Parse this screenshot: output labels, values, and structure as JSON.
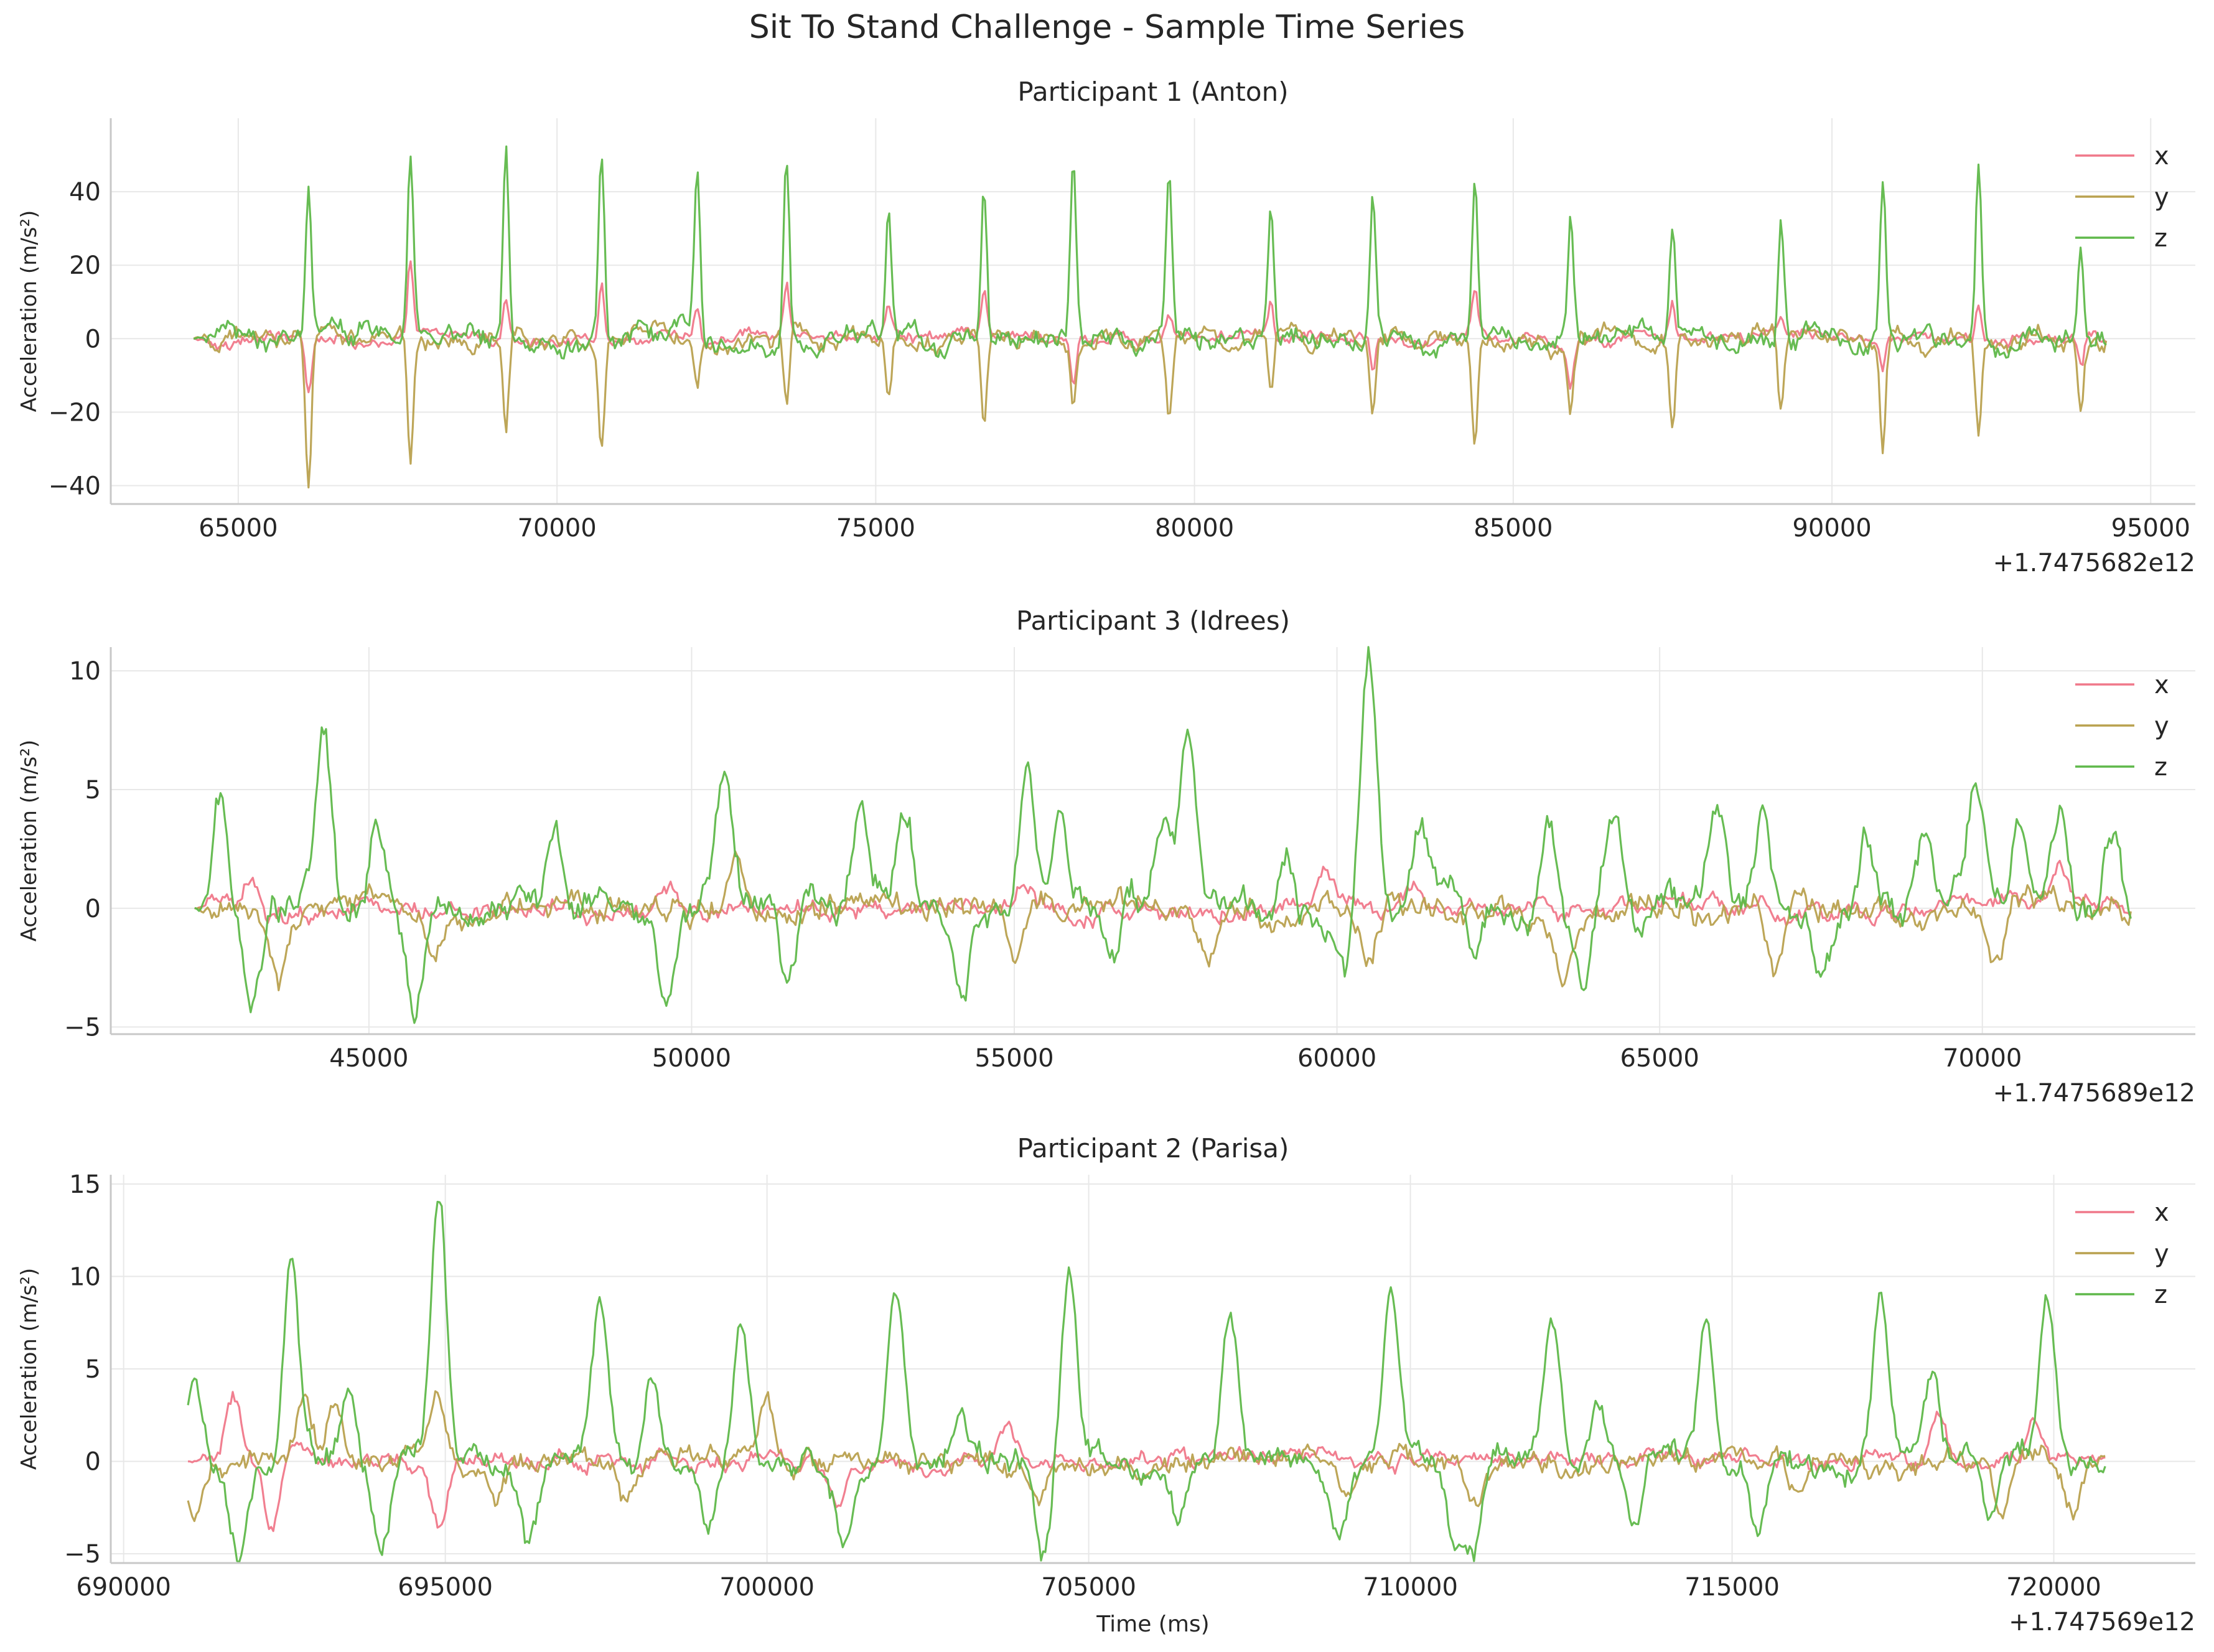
{
  "suptitle": "Sit To Stand Challenge - Sample Time Series",
  "colors": {
    "x": "#f0788a",
    "y": "#b9a14f",
    "z": "#5fb84a",
    "grid": "#e8e8e8",
    "axis": "#c8c8c8"
  },
  "chart_data": [
    {
      "type": "line",
      "title": "Participant 1 (Anton)",
      "xlabel": "",
      "ylabel": "Acceleration (m/s²)",
      "offset_label": "+1.7475682e12",
      "xlim": [
        63000,
        95700
      ],
      "ylim": [
        -45,
        60
      ],
      "xticks": [
        65000,
        70000,
        75000,
        80000,
        85000,
        90000,
        95000
      ],
      "yticks": [
        -40,
        -20,
        0,
        20,
        40
      ],
      "grid": true,
      "legend": "upper-right",
      "x_range": [
        64300,
        94300
      ],
      "series": [
        {
          "name": "x",
          "color": "#f0788a",
          "noise": 2.2,
          "spikes": [
            {
              "t": 66100,
              "v": -14
            },
            {
              "t": 67700,
              "v": 22
            },
            {
              "t": 69200,
              "v": 12
            },
            {
              "t": 70700,
              "v": 16
            },
            {
              "t": 72200,
              "v": 8
            },
            {
              "t": 73600,
              "v": 15
            },
            {
              "t": 75200,
              "v": 9
            },
            {
              "t": 76700,
              "v": 11
            },
            {
              "t": 78100,
              "v": -14
            },
            {
              "t": 79600,
              "v": 6
            },
            {
              "t": 81200,
              "v": 10
            },
            {
              "t": 82800,
              "v": -10
            },
            {
              "t": 84400,
              "v": 12
            },
            {
              "t": 85900,
              "v": -12
            },
            {
              "t": 87500,
              "v": 10
            },
            {
              "t": 89200,
              "v": 5
            },
            {
              "t": 90800,
              "v": -7
            },
            {
              "t": 92300,
              "v": 10
            },
            {
              "t": 93900,
              "v": -8
            }
          ]
        },
        {
          "name": "y",
          "color": "#b9a14f",
          "noise": 3.5,
          "spikes": [
            {
              "t": 66100,
              "v": -40
            },
            {
              "t": 67700,
              "v": -35
            },
            {
              "t": 69200,
              "v": -27
            },
            {
              "t": 70700,
              "v": -26
            },
            {
              "t": 72200,
              "v": -12
            },
            {
              "t": 73600,
              "v": -22
            },
            {
              "t": 75200,
              "v": -17
            },
            {
              "t": 76700,
              "v": -23
            },
            {
              "t": 78100,
              "v": -20
            },
            {
              "t": 79600,
              "v": -22
            },
            {
              "t": 81200,
              "v": -15
            },
            {
              "t": 82800,
              "v": -21
            },
            {
              "t": 84400,
              "v": -28
            },
            {
              "t": 85900,
              "v": -20
            },
            {
              "t": 87500,
              "v": -24
            },
            {
              "t": 89200,
              "v": -23
            },
            {
              "t": 90800,
              "v": -31
            },
            {
              "t": 92300,
              "v": -26
            },
            {
              "t": 93900,
              "v": -19
            }
          ]
        },
        {
          "name": "z",
          "color": "#5fb84a",
          "noise": 4.0,
          "spikes": [
            {
              "t": 66100,
              "v": 40
            },
            {
              "t": 67700,
              "v": 49
            },
            {
              "t": 69200,
              "v": 55
            },
            {
              "t": 70700,
              "v": 50
            },
            {
              "t": 72200,
              "v": 43
            },
            {
              "t": 73600,
              "v": 51
            },
            {
              "t": 75200,
              "v": 36
            },
            {
              "t": 76700,
              "v": 45
            },
            {
              "t": 78100,
              "v": 49
            },
            {
              "t": 79600,
              "v": 42
            },
            {
              "t": 81200,
              "v": 39
            },
            {
              "t": 82800,
              "v": 37
            },
            {
              "t": 84400,
              "v": 44
            },
            {
              "t": 85900,
              "v": 32
            },
            {
              "t": 87500,
              "v": 34
            },
            {
              "t": 89200,
              "v": 32
            },
            {
              "t": 90800,
              "v": 41
            },
            {
              "t": 92300,
              "v": 45
            },
            {
              "t": 93900,
              "v": 29
            }
          ]
        }
      ]
    },
    {
      "type": "line",
      "title": "Participant 3 (Idrees)",
      "xlabel": "",
      "ylabel": "Acceleration (m/s²)",
      "offset_label": "+1.7475689e12",
      "xlim": [
        41000,
        73300
      ],
      "ylim": [
        -5.3,
        11
      ],
      "xticks": [
        45000,
        50000,
        55000,
        60000,
        65000,
        70000
      ],
      "yticks": [
        -5,
        0,
        5,
        10
      ],
      "grid": true,
      "legend": "upper-right",
      "x_range": [
        42300,
        72300
      ],
      "series": [
        {
          "name": "x",
          "color": "#f0788a",
          "noise": 0.5,
          "spikes": [
            {
              "t": 43200,
              "v": 1.6
            },
            {
              "t": 49600,
              "v": 1.2
            },
            {
              "t": 55200,
              "v": 1.1
            },
            {
              "t": 59800,
              "v": 1.3
            },
            {
              "t": 61200,
              "v": 1.2
            },
            {
              "t": 65800,
              "v": 1.0
            },
            {
              "t": 71200,
              "v": 1.5
            }
          ]
        },
        {
          "name": "y",
          "color": "#b9a14f",
          "noise": 0.7,
          "spikes": [
            {
              "t": 43600,
              "v": -2.9
            },
            {
              "t": 46000,
              "v": -2.0
            },
            {
              "t": 50700,
              "v": 2.2
            },
            {
              "t": 55000,
              "v": -2.0
            },
            {
              "t": 58000,
              "v": -1.7
            },
            {
              "t": 60500,
              "v": -2.4
            },
            {
              "t": 63500,
              "v": -2.4
            },
            {
              "t": 66800,
              "v": -2.2
            },
            {
              "t": 70200,
              "v": -2.3
            }
          ]
        },
        {
          "name": "z",
          "color": "#5fb84a",
          "noise": 0.9,
          "spikes": [
            {
              "t": 42700,
              "v": 4.7
            },
            {
              "t": 43200,
              "v": -4.2
            },
            {
              "t": 44300,
              "v": 7.6
            },
            {
              "t": 45100,
              "v": 3.5
            },
            {
              "t": 45700,
              "v": -4.6
            },
            {
              "t": 47900,
              "v": 3.1
            },
            {
              "t": 49600,
              "v": -3.8
            },
            {
              "t": 50500,
              "v": 5.3
            },
            {
              "t": 51500,
              "v": -3.2
            },
            {
              "t": 52600,
              "v": 4.2
            },
            {
              "t": 53300,
              "v": 4.3
            },
            {
              "t": 54200,
              "v": -3.2
            },
            {
              "t": 55200,
              "v": 5.7
            },
            {
              "t": 55700,
              "v": 4.3
            },
            {
              "t": 56500,
              "v": -3.1
            },
            {
              "t": 57300,
              "v": 3.5
            },
            {
              "t": 57700,
              "v": 7.0
            },
            {
              "t": 59200,
              "v": 2.9
            },
            {
              "t": 60100,
              "v": -2.9
            },
            {
              "t": 60500,
              "v": 10.2
            },
            {
              "t": 61300,
              "v": 3.5
            },
            {
              "t": 62100,
              "v": -2.6
            },
            {
              "t": 63300,
              "v": 3.1
            },
            {
              "t": 63800,
              "v": -3.4
            },
            {
              "t": 64300,
              "v": 3.8
            },
            {
              "t": 65900,
              "v": 4.5
            },
            {
              "t": 66600,
              "v": 4.5
            },
            {
              "t": 67500,
              "v": -2.9
            },
            {
              "t": 68200,
              "v": 2.9
            },
            {
              "t": 69100,
              "v": 3.1
            },
            {
              "t": 69900,
              "v": 4.6
            },
            {
              "t": 70600,
              "v": 3.6
            },
            {
              "t": 71200,
              "v": 4.3
            },
            {
              "t": 72000,
              "v": 3.7
            }
          ]
        }
      ]
    },
    {
      "type": "line",
      "title": "Participant 2 (Parisa)",
      "xlabel": "Time (ms)",
      "ylabel": "Acceleration (m/s²)",
      "offset_label": "+1.747569e12",
      "xlim": [
        689800,
        722200
      ],
      "ylim": [
        -5.5,
        15.5
      ],
      "xticks": [
        690000,
        695000,
        700000,
        705000,
        710000,
        715000,
        720000
      ],
      "yticks": [
        -5,
        0,
        5,
        10,
        15
      ],
      "grid": true,
      "legend": "upper-right",
      "x_range": [
        691000,
        720800
      ],
      "series": [
        {
          "name": "x",
          "color": "#f0788a",
          "noise": 0.6,
          "spikes": [
            {
              "t": 691700,
              "v": 3.3
            },
            {
              "t": 692300,
              "v": -4.0
            },
            {
              "t": 694900,
              "v": -3.7
            },
            {
              "t": 701100,
              "v": -2.0
            },
            {
              "t": 703700,
              "v": 1.8
            },
            {
              "t": 718200,
              "v": 2.7
            },
            {
              "t": 719700,
              "v": 1.8
            }
          ]
        },
        {
          "name": "y",
          "color": "#b9a14f",
          "noise": 0.8,
          "spikes": [
            {
              "t": 691100,
              "v": -3.0
            },
            {
              "t": 692800,
              "v": 3.3
            },
            {
              "t": 693300,
              "v": 3.1
            },
            {
              "t": 694900,
              "v": 3.8
            },
            {
              "t": 695800,
              "v": -2.3
            },
            {
              "t": 697800,
              "v": -2.5
            },
            {
              "t": 700000,
              "v": 2.5
            },
            {
              "t": 704200,
              "v": -2.3
            },
            {
              "t": 709000,
              "v": -2.0
            },
            {
              "t": 711000,
              "v": -2.0
            },
            {
              "t": 716000,
              "v": -2.0
            },
            {
              "t": 719200,
              "v": -2.5
            },
            {
              "t": 720300,
              "v": -2.5
            }
          ]
        },
        {
          "name": "z",
          "color": "#5fb84a",
          "noise": 0.9,
          "spikes": [
            {
              "t": 691100,
              "v": 4.3
            },
            {
              "t": 691800,
              "v": -4.8
            },
            {
              "t": 692600,
              "v": 11.6
            },
            {
              "t": 693500,
              "v": 3.8
            },
            {
              "t": 694000,
              "v": -4.7
            },
            {
              "t": 694900,
              "v": 14.5
            },
            {
              "t": 696300,
              "v": -4.1
            },
            {
              "t": 697400,
              "v": 8.7
            },
            {
              "t": 698200,
              "v": 4.8
            },
            {
              "t": 699100,
              "v": -4.0
            },
            {
              "t": 699600,
              "v": 8.6
            },
            {
              "t": 701200,
              "v": -5.4
            },
            {
              "t": 702000,
              "v": 8.6
            },
            {
              "t": 703000,
              "v": 3.0
            },
            {
              "t": 704300,
              "v": -4.8
            },
            {
              "t": 704700,
              "v": 10.5
            },
            {
              "t": 706400,
              "v": -3.2
            },
            {
              "t": 707200,
              "v": 7.9
            },
            {
              "t": 708900,
              "v": -4.2
            },
            {
              "t": 709700,
              "v": 9.3
            },
            {
              "t": 710700,
              "v": -4.8
            },
            {
              "t": 711000,
              "v": -5.0
            },
            {
              "t": 712200,
              "v": 7.1
            },
            {
              "t": 712900,
              "v": 3.0
            },
            {
              "t": 713500,
              "v": -3.4
            },
            {
              "t": 714600,
              "v": 7.5
            },
            {
              "t": 715400,
              "v": -4.1
            },
            {
              "t": 717300,
              "v": 8.9
            },
            {
              "t": 718100,
              "v": 4.5
            },
            {
              "t": 719000,
              "v": -3.8
            },
            {
              "t": 719900,
              "v": 9.0
            }
          ]
        }
      ]
    }
  ]
}
